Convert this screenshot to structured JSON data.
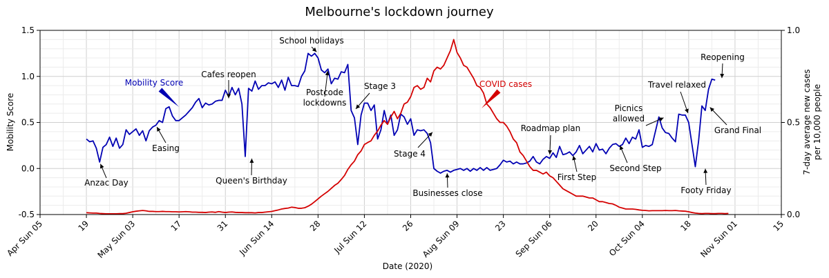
{
  "chart_data": {
    "type": "line",
    "title": "Melbourne's lockdown journey",
    "xlabel": "Date (2020)",
    "ylabel_left": "Mobility Score",
    "ylabel_right": [
      "7-day average new cases",
      "per 10,000 people"
    ],
    "ylim_left": [
      -0.5,
      1.5
    ],
    "ylim_right": [
      0.0,
      1.0
    ],
    "xlim": [
      "2020-04-05",
      "2020-11-15"
    ],
    "left_ticks": [
      "-0.5",
      "0.0",
      "0.5",
      "1.0",
      "1.5"
    ],
    "right_ticks": [
      "0.0",
      "0.5",
      "1.0"
    ],
    "x_ticks": [
      {
        "date": "2020-04-05",
        "label": "Apr Sun 05"
      },
      {
        "date": "2020-04-19",
        "label": "19"
      },
      {
        "date": "2020-05-03",
        "label": "May Sun 03"
      },
      {
        "date": "2020-05-17",
        "label": "17"
      },
      {
        "date": "2020-05-31",
        "label": "31"
      },
      {
        "date": "2020-06-14",
        "label": "Jun Sun 14"
      },
      {
        "date": "2020-06-28",
        "label": "28"
      },
      {
        "date": "2020-07-12",
        "label": "Jul Sun 12"
      },
      {
        "date": "2020-07-26",
        "label": "26"
      },
      {
        "date": "2020-08-09",
        "label": "Aug Sun 09"
      },
      {
        "date": "2020-08-23",
        "label": "23"
      },
      {
        "date": "2020-09-06",
        "label": "Sep Sun 06"
      },
      {
        "date": "2020-09-20",
        "label": "20"
      },
      {
        "date": "2020-10-04",
        "label": "Oct Sun 04"
      },
      {
        "date": "2020-10-18",
        "label": "18"
      },
      {
        "date": "2020-11-01",
        "label": "Nov Sun 01"
      },
      {
        "date": "2020-11-15",
        "label": "15"
      }
    ],
    "grid": true,
    "series": [
      {
        "name": "Mobility Score",
        "axis": "left",
        "color": "#0000b3",
        "start_date": "2020-04-19",
        "step_days": 1,
        "values": [
          0.32,
          0.29,
          0.3,
          0.22,
          0.07,
          0.23,
          0.26,
          0.34,
          0.24,
          0.33,
          0.22,
          0.26,
          0.42,
          0.37,
          0.4,
          0.43,
          0.36,
          0.41,
          0.3,
          0.41,
          0.45,
          0.47,
          0.52,
          0.5,
          0.65,
          0.67,
          0.57,
          0.52,
          0.52,
          0.55,
          0.58,
          0.62,
          0.66,
          0.72,
          0.76,
          0.66,
          0.71,
          0.69,
          0.7,
          0.73,
          0.74,
          0.74,
          0.85,
          0.78,
          0.88,
          0.8,
          0.87,
          0.7,
          0.13,
          0.87,
          0.84,
          0.95,
          0.86,
          0.9,
          0.9,
          0.93,
          0.92,
          0.94,
          0.88,
          0.96,
          0.85,
          0.99,
          0.9,
          0.9,
          0.89,
          1.0,
          1.06,
          1.25,
          1.22,
          1.25,
          1.2,
          1.07,
          1.04,
          1.08,
          0.92,
          0.98,
          0.97,
          1.05,
          1.04,
          1.13,
          0.63,
          0.55,
          0.26,
          0.58,
          0.71,
          0.71,
          0.63,
          0.69,
          0.32,
          0.42,
          0.63,
          0.48,
          0.58,
          0.36,
          0.42,
          0.59,
          0.56,
          0.48,
          0.54,
          0.36,
          0.42,
          0.41,
          0.42,
          0.38,
          0.28,
          0.0,
          -0.03,
          -0.05,
          -0.03,
          -0.02,
          -0.04,
          -0.02,
          -0.01,
          0.0,
          -0.02,
          0.0,
          -0.03,
          0.0,
          -0.02,
          0.01,
          -0.02,
          0.01,
          -0.02,
          -0.01,
          0.0,
          0.04,
          0.09,
          0.07,
          0.08,
          0.05,
          0.07,
          0.05,
          0.05,
          0.06,
          0.08,
          0.13,
          0.07,
          0.05,
          0.1,
          0.13,
          0.11,
          0.17,
          0.12,
          0.24,
          0.15,
          0.16,
          0.18,
          0.14,
          0.18,
          0.25,
          0.16,
          0.2,
          0.24,
          0.18,
          0.27,
          0.2,
          0.21,
          0.16,
          0.22,
          0.26,
          0.27,
          0.24,
          0.26,
          0.33,
          0.27,
          0.34,
          0.32,
          0.42,
          0.23,
          0.25,
          0.24,
          0.26,
          0.41,
          0.56,
          0.44,
          0.39,
          0.38,
          0.33,
          0.29,
          0.59,
          0.58,
          0.58,
          0.5,
          0.26,
          0.02,
          0.3,
          0.68,
          0.63,
          0.86,
          0.97,
          0.96
        ]
      },
      {
        "name": "COVID cases",
        "axis": "right",
        "color": "#d40000",
        "start_date": "2020-04-19",
        "step_days": 1,
        "values": [
          0.01,
          0.009,
          0.008,
          0.008,
          0.006,
          0.005,
          0.004,
          0.004,
          0.004,
          0.004,
          0.005,
          0.005,
          0.007,
          0.011,
          0.015,
          0.018,
          0.02,
          0.022,
          0.02,
          0.017,
          0.017,
          0.016,
          0.016,
          0.017,
          0.016,
          0.016,
          0.015,
          0.015,
          0.014,
          0.015,
          0.016,
          0.015,
          0.013,
          0.013,
          0.012,
          0.012,
          0.011,
          0.013,
          0.014,
          0.012,
          0.016,
          0.013,
          0.011,
          0.013,
          0.014,
          0.012,
          0.011,
          0.011,
          0.01,
          0.01,
          0.01,
          0.009,
          0.011,
          0.011,
          0.013,
          0.015,
          0.017,
          0.021,
          0.025,
          0.03,
          0.033,
          0.035,
          0.04,
          0.038,
          0.034,
          0.034,
          0.037,
          0.045,
          0.056,
          0.07,
          0.085,
          0.1,
          0.113,
          0.126,
          0.142,
          0.158,
          0.17,
          0.19,
          0.212,
          0.245,
          0.27,
          0.29,
          0.325,
          0.345,
          0.38,
          0.391,
          0.4,
          0.43,
          0.453,
          0.485,
          0.51,
          0.49,
          0.53,
          0.56,
          0.52,
          0.55,
          0.6,
          0.61,
          0.64,
          0.69,
          0.7,
          0.68,
          0.69,
          0.74,
          0.72,
          0.78,
          0.8,
          0.79,
          0.81,
          0.85,
          0.89,
          0.95,
          0.88,
          0.85,
          0.81,
          0.8,
          0.77,
          0.74,
          0.7,
          0.69,
          0.66,
          0.6,
          0.58,
          0.55,
          0.52,
          0.5,
          0.5,
          0.48,
          0.45,
          0.41,
          0.39,
          0.34,
          0.32,
          0.29,
          0.26,
          0.24,
          0.24,
          0.23,
          0.22,
          0.23,
          0.21,
          0.2,
          0.18,
          0.16,
          0.14,
          0.13,
          0.12,
          0.11,
          0.1,
          0.1,
          0.1,
          0.095,
          0.09,
          0.09,
          0.08,
          0.07,
          0.07,
          0.065,
          0.06,
          0.058,
          0.05,
          0.04,
          0.035,
          0.03,
          0.03,
          0.03,
          0.028,
          0.025,
          0.023,
          0.022,
          0.02,
          0.021,
          0.021,
          0.021,
          0.021,
          0.022,
          0.021,
          0.021,
          0.022,
          0.02,
          0.019,
          0.018,
          0.015,
          0.011,
          0.008,
          0.006,
          0.005,
          0.006,
          0.006,
          0.005,
          0.005,
          0.006,
          0.006,
          0.005,
          0.006
        ]
      }
    ],
    "legend_labels": [
      {
        "text": "Mobility Score",
        "color": "#0000b3",
        "series": "Mobility Score"
      },
      {
        "text": "COVID cases",
        "color": "#d40000",
        "series": "COVID cases"
      }
    ],
    "annotations": [
      {
        "lines": [
          "Anzac Day"
        ],
        "date": "2020-04-23",
        "y": 0.07
      },
      {
        "lines": [
          "Easing"
        ],
        "date": "2020-05-10",
        "y": 0.47
      },
      {
        "lines": [
          "Cafes reopen"
        ],
        "date": "2020-06-01",
        "y": 0.74
      },
      {
        "lines": [
          "Queen's Birthday"
        ],
        "date": "2020-06-08",
        "y": 0.13
      },
      {
        "lines": [
          "School holidays"
        ],
        "date": "2020-06-28",
        "y": 1.25
      },
      {
        "lines": [
          "Postcode",
          "lockdowns"
        ],
        "date": "2020-07-01",
        "y": 1.08
      },
      {
        "lines": [
          "Stage 3"
        ],
        "date": "2020-07-09",
        "y": 0.63
      },
      {
        "lines": [
          "Stage 4"
        ],
        "date": "2020-08-02",
        "y": 0.41
      },
      {
        "lines": [
          "Businesses close"
        ],
        "date": "2020-08-06",
        "y": -0.03
      },
      {
        "lines": [
          "Roadmap plan"
        ],
        "date": "2020-09-06",
        "y": 0.13
      },
      {
        "lines": [
          "First Step"
        ],
        "date": "2020-09-13",
        "y": 0.16
      },
      {
        "lines": [
          "Second Step"
        ],
        "date": "2020-09-27",
        "y": 0.27
      },
      {
        "lines": [
          "Picnics",
          "allowed"
        ],
        "date": "2020-10-11",
        "y": 0.56
      },
      {
        "lines": [
          "Travel relaxed"
        ],
        "date": "2020-10-18",
        "y": 0.58
      },
      {
        "lines": [
          "Footy Friday"
        ],
        "date": "2020-10-23",
        "y": 0.02
      },
      {
        "lines": [
          "Reopening"
        ],
        "date": "2020-10-28",
        "y": 0.96
      },
      {
        "lines": [
          "Grand Final"
        ],
        "date": "2020-10-24",
        "y": 0.68
      }
    ]
  }
}
